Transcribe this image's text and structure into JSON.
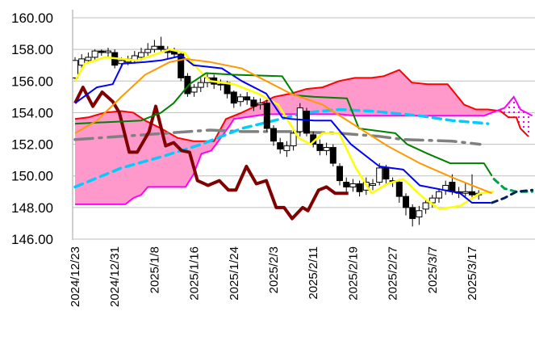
{
  "chart_data": {
    "type": "candlestick-ichimoku",
    "title": "",
    "ylim": [
      146,
      160
    ],
    "yticks": [
      "146.00",
      "148.00",
      "150.00",
      "152.00",
      "154.00",
      "156.00",
      "158.00",
      "160.00"
    ],
    "ytick_values": [
      146,
      148,
      150,
      152,
      154,
      156,
      158,
      160
    ],
    "xlim": [
      0,
      69
    ],
    "xticks": [
      {
        "i": 0,
        "label": "2024/12/23"
      },
      {
        "i": 6,
        "label": "2024/12/31"
      },
      {
        "i": 12,
        "label": "2025/1/8"
      },
      {
        "i": 18,
        "label": "2025/1/16"
      },
      {
        "i": 24,
        "label": "2025/1/24"
      },
      {
        "i": 30,
        "label": "2025/2/3"
      },
      {
        "i": 36,
        "label": "2025/2/11"
      },
      {
        "i": 42,
        "label": "2025/2/19"
      },
      {
        "i": 48,
        "label": "2025/2/27"
      },
      {
        "i": 54,
        "label": "2025/3/7"
      },
      {
        "i": 60,
        "label": "2025/3/17"
      }
    ],
    "grid": true,
    "candles": [
      [
        156.2,
        157.3,
        157.5,
        156.0
      ],
      [
        157.0,
        157.4,
        157.7,
        156.8
      ],
      [
        157.3,
        157.5,
        157.8,
        157.1
      ],
      [
        157.5,
        157.9,
        158.0,
        157.3
      ],
      [
        157.9,
        157.8,
        158.0,
        157.6
      ],
      [
        157.8,
        157.9,
        158.1,
        157.5
      ],
      [
        157.8,
        157.0,
        158.0,
        156.8
      ],
      [
        157.1,
        157.3,
        157.5,
        156.9
      ],
      [
        157.2,
        157.4,
        157.6,
        157.0
      ],
      [
        157.3,
        157.6,
        157.9,
        157.1
      ],
      [
        157.5,
        157.8,
        158.1,
        157.3
      ],
      [
        157.8,
        158.0,
        158.4,
        157.6
      ],
      [
        158.0,
        158.2,
        158.6,
        157.8
      ],
      [
        158.2,
        158.0,
        158.8,
        157.8
      ],
      [
        158.0,
        157.8,
        158.2,
        157.4
      ],
      [
        157.9,
        157.7,
        158.1,
        157.5
      ],
      [
        157.7,
        156.2,
        157.9,
        156.0
      ],
      [
        156.3,
        155.2,
        156.5,
        155.0
      ],
      [
        155.3,
        155.6,
        155.8,
        155.0
      ],
      [
        155.6,
        155.9,
        156.2,
        155.3
      ],
      [
        155.9,
        156.2,
        156.5,
        155.6
      ],
      [
        156.2,
        155.8,
        156.4,
        155.5
      ],
      [
        155.8,
        155.8,
        156.1,
        155.4
      ],
      [
        155.9,
        155.2,
        156.0,
        154.9
      ],
      [
        155.3,
        154.6,
        155.4,
        154.3
      ],
      [
        154.7,
        155.0,
        155.2,
        154.4
      ],
      [
        155.0,
        154.8,
        155.3,
        154.5
      ],
      [
        154.8,
        154.4,
        155.0,
        154.1
      ],
      [
        154.5,
        154.6,
        154.9,
        154.2
      ],
      [
        154.6,
        153.0,
        154.8,
        152.8
      ],
      [
        153.0,
        152.2,
        153.2,
        151.9
      ],
      [
        152.1,
        151.7,
        152.4,
        151.4
      ],
      [
        151.6,
        151.9,
        152.2,
        151.2
      ],
      [
        151.9,
        152.7,
        153.0,
        151.6
      ],
      [
        152.8,
        154.3,
        154.6,
        152.5
      ],
      [
        154.1,
        152.7,
        154.3,
        152.5
      ],
      [
        152.6,
        152.0,
        152.8,
        151.8
      ],
      [
        152.0,
        151.6,
        152.3,
        151.3
      ],
      [
        151.6,
        151.8,
        152.1,
        151.3
      ],
      [
        151.8,
        150.8,
        152.0,
        150.6
      ],
      [
        150.6,
        149.7,
        150.8,
        149.4
      ],
      [
        149.6,
        149.3,
        149.9,
        149.0
      ],
      [
        149.3,
        149.5,
        149.8,
        149.0
      ],
      [
        149.5,
        149.0,
        149.7,
        148.7
      ],
      [
        149.1,
        149.6,
        149.9,
        148.8
      ],
      [
        149.4,
        149.5,
        149.8,
        149.1
      ],
      [
        149.6,
        150.5,
        150.8,
        149.4
      ],
      [
        150.5,
        149.8,
        150.7,
        149.5
      ],
      [
        149.7,
        149.6,
        149.9,
        149.3
      ],
      [
        149.6,
        148.7,
        149.8,
        148.3
      ],
      [
        148.7,
        148.0,
        148.9,
        147.5
      ],
      [
        148.0,
        147.3,
        148.2,
        146.8
      ],
      [
        147.4,
        147.8,
        148.1,
        146.9
      ],
      [
        147.9,
        148.3,
        148.5,
        147.6
      ],
      [
        148.3,
        148.6,
        148.8,
        148.0
      ],
      [
        148.6,
        149.0,
        149.2,
        148.3
      ],
      [
        149.1,
        149.4,
        149.7,
        148.8
      ],
      [
        149.6,
        149.0,
        150.1,
        148.8
      ],
      [
        149.0,
        148.9,
        149.3,
        148.6
      ],
      [
        148.9,
        149.0,
        149.6,
        148.7
      ],
      [
        149.0,
        148.8,
        150.1,
        148.6
      ],
      [
        148.8,
        148.9,
        149.1,
        148.5
      ]
    ],
    "series": [
      {
        "name": "ma-yellow",
        "color": "#FFFF00",
        "width": 2.5,
        "dash": "",
        "points": [
          [
            0,
            156.0
          ],
          [
            1.5,
            157.1
          ],
          [
            4.5,
            157.5
          ],
          [
            9.4,
            157.3
          ],
          [
            14.3,
            158.0
          ],
          [
            16.5,
            157.8
          ],
          [
            18.5,
            156.8
          ],
          [
            20.4,
            156.0
          ],
          [
            24,
            155.8
          ],
          [
            27.7,
            155.2
          ],
          [
            30.7,
            154.5
          ],
          [
            33.8,
            152.4
          ],
          [
            35.6,
            152.0
          ],
          [
            37.4,
            152.7
          ],
          [
            39.9,
            152.7
          ],
          [
            42.3,
            150.6
          ],
          [
            44.8,
            148.9
          ],
          [
            47.2,
            149.5
          ],
          [
            49.6,
            149.8
          ],
          [
            52.7,
            148.6
          ],
          [
            55.1,
            147.9
          ],
          [
            58.2,
            148.1
          ],
          [
            61.2,
            148.9
          ],
          [
            63.3,
            149.0
          ]
        ]
      },
      {
        "name": "tenkan-blue",
        "color": "#0000FF",
        "width": 2,
        "dash": "",
        "points": [
          [
            0,
            154.6
          ],
          [
            3.3,
            155.6
          ],
          [
            5.7,
            155.8
          ],
          [
            7.2,
            157.1
          ],
          [
            10.6,
            157.2
          ],
          [
            13,
            157.3
          ],
          [
            16.1,
            157.6
          ],
          [
            17.9,
            157.0
          ],
          [
            22.2,
            156.8
          ],
          [
            25.2,
            156.0
          ],
          [
            28.9,
            155.2
          ],
          [
            31.3,
            153.7
          ],
          [
            32.6,
            153.6
          ],
          [
            36.2,
            153.5
          ],
          [
            38.7,
            153.5
          ],
          [
            41.7,
            152.0
          ],
          [
            46,
            150.6
          ],
          [
            49.6,
            150.4
          ],
          [
            52.1,
            149.4
          ],
          [
            58.2,
            148.9
          ],
          [
            60,
            148.3
          ],
          [
            62.8,
            148.3
          ]
        ]
      },
      {
        "name": "kijun-green",
        "color": "#008000",
        "width": 2,
        "dash": "",
        "points": [
          [
            0,
            153.3
          ],
          [
            10,
            153.5
          ],
          [
            13,
            154.0
          ],
          [
            14.9,
            154.6
          ],
          [
            17.3,
            155.8
          ],
          [
            19.8,
            156.5
          ],
          [
            24,
            156.4
          ],
          [
            31.3,
            156.3
          ],
          [
            33.2,
            155.1
          ],
          [
            36.2,
            155.0
          ],
          [
            41.1,
            154.9
          ],
          [
            42.9,
            153.0
          ],
          [
            48.4,
            152.7
          ],
          [
            50.2,
            152.0
          ],
          [
            53.3,
            151.4
          ],
          [
            56.7,
            150.8
          ],
          [
            61.8,
            150.8
          ],
          [
            63,
            150.0
          ]
        ]
      },
      {
        "name": "kijun-forecast",
        "color": "#00A050",
        "width": 3,
        "dash": "7 6",
        "points": [
          [
            63.3,
            149.8
          ],
          [
            64.9,
            149.2
          ],
          [
            66.7,
            149.0
          ],
          [
            69.1,
            149.0
          ]
        ]
      },
      {
        "name": "ma-orange",
        "color": "#FF9900",
        "width": 2,
        "dash": "",
        "points": [
          [
            0,
            152.7
          ],
          [
            3.3,
            153.5
          ],
          [
            7,
            155.0
          ],
          [
            10.6,
            156.4
          ],
          [
            14.3,
            157.2
          ],
          [
            16.7,
            157.4
          ],
          [
            20.4,
            157.2
          ],
          [
            25.2,
            156.8
          ],
          [
            28.9,
            156.0
          ],
          [
            32.6,
            155.2
          ],
          [
            37.4,
            154.5
          ],
          [
            42.3,
            153.2
          ],
          [
            47.2,
            151.9
          ],
          [
            52.1,
            150.8
          ],
          [
            57,
            149.9
          ],
          [
            60.6,
            149.3
          ],
          [
            63,
            148.9
          ]
        ]
      },
      {
        "name": "tenkan-forecast",
        "color": "#002060",
        "width": 3,
        "dash": "7 6",
        "points": [
          [
            63,
            148.3
          ],
          [
            64.9,
            148.6
          ],
          [
            66.7,
            149.0
          ],
          [
            69.1,
            149.1
          ]
        ]
      },
      {
        "name": "ma-gray",
        "color": "#808080",
        "width": 3.5,
        "dash": "22 8 3 8",
        "points": [
          [
            0,
            152.3
          ],
          [
            7,
            152.5
          ],
          [
            20.4,
            152.9
          ],
          [
            25.2,
            152.8
          ],
          [
            32.6,
            152.8
          ],
          [
            39.9,
            152.7
          ],
          [
            46,
            152.5
          ],
          [
            49.6,
            152.3
          ],
          [
            57,
            152.2
          ],
          [
            61.2,
            152.0
          ]
        ]
      },
      {
        "name": "ma-cyan",
        "color": "#00CCFF",
        "width": 3.5,
        "dash": "10 7",
        "points": [
          [
            0,
            149.3
          ],
          [
            7,
            150.5
          ],
          [
            13,
            151.2
          ],
          [
            19.1,
            152.0
          ],
          [
            25.2,
            153.0
          ],
          [
            30.1,
            153.5
          ],
          [
            35,
            154.0
          ],
          [
            39.9,
            154.2
          ],
          [
            44.8,
            154.1
          ],
          [
            52.1,
            153.8
          ],
          [
            57,
            153.5
          ],
          [
            62.4,
            153.3
          ]
        ]
      },
      {
        "name": "chikou-darkred",
        "color": "#800000",
        "width": 4,
        "dash": "",
        "points": [
          [
            0,
            154.6
          ],
          [
            1.2,
            155.6
          ],
          [
            2.7,
            154.4
          ],
          [
            4.1,
            155.3
          ],
          [
            5.7,
            154.7
          ],
          [
            6.7,
            154.0
          ],
          [
            8.2,
            151.5
          ],
          [
            9.4,
            151.5
          ],
          [
            11.2,
            152.8
          ],
          [
            12.2,
            154.4
          ],
          [
            13.7,
            151.9
          ],
          [
            14.9,
            152.1
          ],
          [
            16.1,
            151.6
          ],
          [
            17.3,
            151.5
          ],
          [
            18.5,
            149.7
          ],
          [
            20.1,
            149.4
          ],
          [
            21.8,
            149.7
          ],
          [
            23.2,
            149.1
          ],
          [
            24.3,
            149.1
          ],
          [
            25.9,
            150.6
          ],
          [
            27.4,
            149.5
          ],
          [
            28.9,
            149.7
          ],
          [
            30.4,
            148.0
          ],
          [
            31.6,
            148.0
          ],
          [
            32.8,
            147.3
          ],
          [
            34.4,
            148.0
          ],
          [
            35.2,
            147.8
          ],
          [
            36.8,
            149.1
          ],
          [
            38,
            149.3
          ],
          [
            39.3,
            148.9
          ],
          [
            41.3,
            148.9
          ]
        ]
      }
    ],
    "cloud": {
      "fill": "#FF99CC",
      "senkou_a": {
        "name": "senkou-a-red",
        "color": "#FF0000",
        "points": [
          [
            0,
            153.6
          ],
          [
            2,
            153.7
          ],
          [
            4.5,
            154.0
          ],
          [
            7,
            154.1
          ],
          [
            8.8,
            154.0
          ],
          [
            10.6,
            153.5
          ],
          [
            13,
            153.0
          ],
          [
            15.5,
            152.4
          ],
          [
            17.9,
            152.2
          ],
          [
            21,
            152.2
          ],
          [
            22.8,
            153.6
          ],
          [
            25.2,
            154.0
          ],
          [
            27.7,
            154.5
          ],
          [
            30.1,
            155.0
          ],
          [
            32.6,
            155.2
          ],
          [
            35,
            155.5
          ],
          [
            37.4,
            155.6
          ],
          [
            39.9,
            156.0
          ],
          [
            42.3,
            156.2
          ],
          [
            44.8,
            156.2
          ],
          [
            46.6,
            156.3
          ],
          [
            49,
            156.7
          ],
          [
            50.9,
            155.9
          ],
          [
            53.3,
            155.8
          ],
          [
            56.3,
            155.8
          ],
          [
            58.8,
            154.5
          ],
          [
            60.6,
            154.2
          ],
          [
            62.4,
            154.2
          ],
          [
            64.3,
            154.1
          ],
          [
            65.5,
            153.7
          ],
          [
            66.7,
            153.7
          ],
          [
            67.3,
            153.0
          ],
          [
            68.5,
            152.5
          ]
        ]
      },
      "senkou_b": {
        "name": "senkou-b-magenta",
        "color": "#FF00FF",
        "points": [
          [
            0,
            148.2
          ],
          [
            7.6,
            148.2
          ],
          [
            8.8,
            148.6
          ],
          [
            10,
            148.8
          ],
          [
            11,
            149.3
          ],
          [
            16.7,
            149.3
          ],
          [
            17.9,
            150.1
          ],
          [
            19.1,
            151.4
          ],
          [
            20.6,
            151.6
          ],
          [
            22.2,
            152.5
          ],
          [
            23.4,
            153.2
          ],
          [
            24,
            153.6
          ],
          [
            28.9,
            153.9
          ],
          [
            39.9,
            153.9
          ],
          [
            42.3,
            153.8
          ],
          [
            61.8,
            153.8
          ],
          [
            63,
            154.0
          ],
          [
            64.9,
            154.3
          ],
          [
            66.3,
            155.0
          ],
          [
            67.3,
            154.2
          ],
          [
            69.1,
            153.8
          ]
        ]
      }
    }
  }
}
